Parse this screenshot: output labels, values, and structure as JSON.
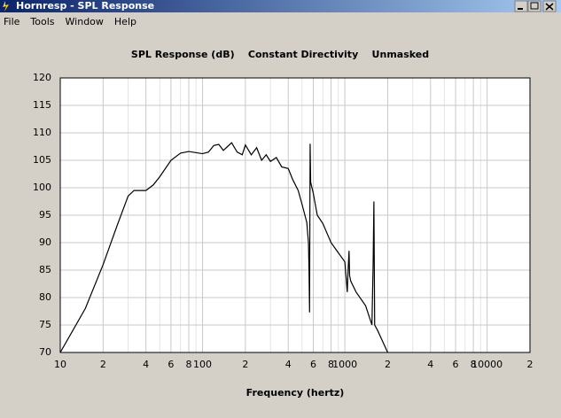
{
  "window": {
    "title": "Hornresp - SPL Response"
  },
  "menu": [
    "File",
    "Tools",
    "Window",
    "Help"
  ],
  "chart_data": {
    "type": "line",
    "title": "SPL Response (dB)    Constant Directivity    Unmasked",
    "x_label": "Frequency (hertz)",
    "log_x": true,
    "grid": true,
    "color": "#000000",
    "xlim": [
      10,
      20000
    ],
    "ylim": [
      70,
      120
    ],
    "yticks": [
      70,
      75,
      80,
      85,
      90,
      95,
      100,
      105,
      110,
      115,
      120
    ],
    "xticks": [
      10,
      {
        "value": 20,
        "label": "2"
      },
      {
        "value": 40,
        "label": "4"
      },
      {
        "value": 60,
        "label": "6"
      },
      {
        "value": 80,
        "label": "8"
      },
      100,
      {
        "value": 200,
        "label": "2"
      },
      {
        "value": 400,
        "label": "4"
      },
      {
        "value": 600,
        "label": "6"
      },
      {
        "value": 800,
        "label": "8"
      },
      1000,
      {
        "value": 2000,
        "label": "2"
      },
      {
        "value": 4000,
        "label": "4"
      },
      {
        "value": 6000,
        "label": "6"
      },
      {
        "value": 8000,
        "label": "8"
      },
      10000,
      {
        "value": 20000,
        "label": "2"
      }
    ],
    "x_minor_ticks": [
      30,
      50,
      70,
      90,
      300,
      500,
      700,
      900,
      3000,
      5000,
      7000,
      9000
    ],
    "x": [
      10,
      15,
      20,
      25,
      30,
      33,
      40,
      45,
      50,
      60,
      70,
      80,
      100,
      110,
      120,
      130,
      140,
      160,
      175,
      190,
      200,
      220,
      240,
      260,
      280,
      300,
      330,
      360,
      400,
      430,
      470,
      500,
      540,
      555,
      560,
      565,
      570,
      575,
      600,
      640,
      700,
      800,
      1000,
      1040,
      1050,
      1070,
      1080,
      1100,
      1200,
      1400,
      1550,
      1580,
      1600,
      1620,
      1700,
      2000
    ],
    "y": [
      70,
      78,
      86,
      93,
      98.5,
      99.5,
      99.5,
      100.5,
      102,
      105,
      106.3,
      106.6,
      106.2,
      106.5,
      107.7,
      107.9,
      106.8,
      108.2,
      106.5,
      106,
      107.8,
      106,
      107.3,
      105,
      106,
      104.8,
      105.5,
      103.8,
      103.5,
      101.5,
      99.5,
      97,
      93.7,
      90,
      85,
      77.3,
      108,
      101,
      99,
      95,
      93.5,
      90,
      86.5,
      81,
      84,
      88.5,
      84,
      83,
      81,
      78.5,
      75,
      86,
      97.5,
      75,
      74,
      70
    ]
  }
}
